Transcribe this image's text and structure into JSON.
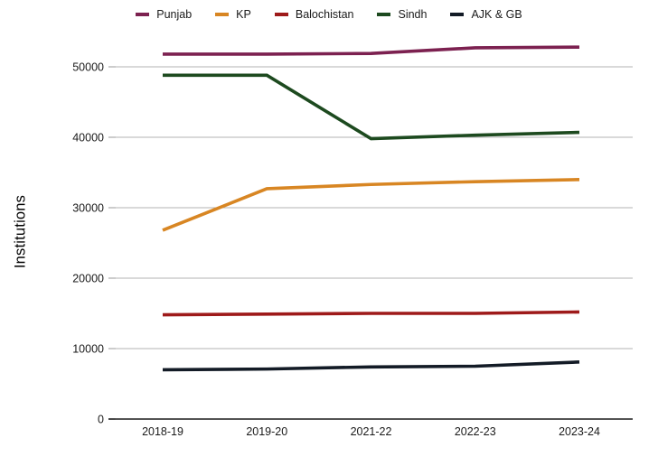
{
  "chart_data": {
    "type": "line",
    "categories": [
      "2018-19",
      "2019-20",
      "2021-22",
      "2022-23",
      "2023-24"
    ],
    "series": [
      {
        "name": "Punjab",
        "slug": "punjab",
        "color": "#7c2150",
        "values": [
          51800,
          51800,
          51900,
          52700,
          52800
        ]
      },
      {
        "name": "KP",
        "slug": "kp",
        "color": "#d88623",
        "values": [
          26800,
          32700,
          33300,
          33700,
          34000
        ]
      },
      {
        "name": "Balochistan",
        "slug": "balochistan",
        "color": "#9e1a1a",
        "values": [
          14800,
          14900,
          15000,
          15000,
          15200
        ]
      },
      {
        "name": "Sindh",
        "slug": "sindh",
        "color": "#1d4a1f",
        "values": [
          48800,
          48800,
          39800,
          40300,
          40700
        ]
      },
      {
        "name": "AJK & GB",
        "slug": "ajk-gb",
        "color": "#131b26",
        "values": [
          7000,
          7100,
          7400,
          7500,
          8100
        ]
      }
    ],
    "title": "",
    "xlabel": "",
    "ylabel": "Institutions",
    "ylim": [
      0,
      55000
    ],
    "yticks": [
      0,
      10000,
      20000,
      30000,
      40000,
      50000
    ],
    "grid": "horizontal",
    "legend_position": "top",
    "colors": {
      "gridline": "#b3b3b3",
      "baseline": "#1a1a1a",
      "tick_text": "#1a1a1a"
    }
  }
}
